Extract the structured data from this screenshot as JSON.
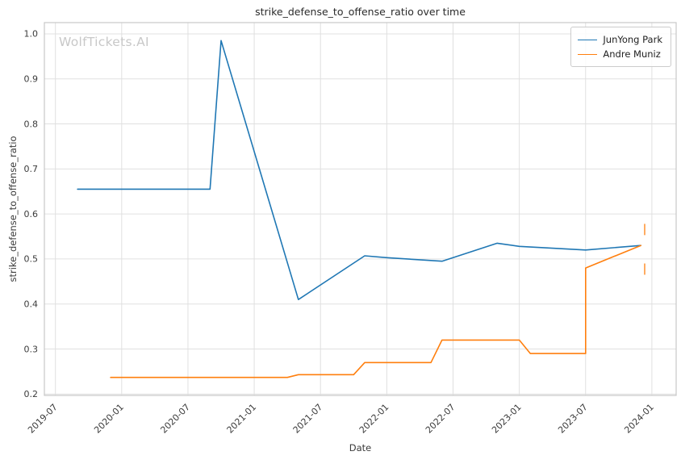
{
  "watermark": "WolfTickets.AI",
  "chart_data": {
    "type": "line",
    "title": "strike_defense_to_offense_ratio over time",
    "xlabel": "Date",
    "ylabel": "strike_defense_to_offense_ratio",
    "grid": true,
    "legend_position": "upper right",
    "ylim": [
      0.2,
      1.0
    ],
    "yticks": [
      0.2,
      0.3,
      0.4,
      0.5,
      0.6,
      0.7,
      0.8,
      0.9,
      1.0
    ],
    "xticks": [
      "2019-07",
      "2020-01",
      "2020-07",
      "2021-01",
      "2021-07",
      "2022-01",
      "2022-07",
      "2023-01",
      "2023-07",
      "2024-01"
    ],
    "series": [
      {
        "name": "JunYong Park",
        "color": "#1f77b4",
        "points": [
          [
            "2019-09",
            0.655
          ],
          [
            "2020-09",
            0.655
          ],
          [
            "2020-10",
            0.985
          ],
          [
            "2021-05",
            0.41
          ],
          [
            "2021-11",
            0.507
          ],
          [
            "2022-01",
            0.503
          ],
          [
            "2022-06",
            0.495
          ],
          [
            "2022-11",
            0.535
          ],
          [
            "2023-01",
            0.528
          ],
          [
            "2023-07",
            0.52
          ],
          [
            "2023-12",
            0.53
          ]
        ]
      },
      {
        "name": "Andre Muniz",
        "color": "#ff7f0e",
        "points": [
          [
            "2019-12",
            0.237
          ],
          [
            "2021-04",
            0.237
          ],
          [
            "2021-05",
            0.243
          ],
          [
            "2021-10",
            0.243
          ],
          [
            "2021-11",
            0.27
          ],
          [
            "2022-05",
            0.27
          ],
          [
            "2022-06",
            0.32
          ],
          [
            "2023-01",
            0.32
          ],
          [
            "2023-02",
            0.29
          ],
          [
            "2023-07",
            0.29
          ],
          [
            "2023-07",
            0.48
          ],
          [
            "2023-12",
            0.53
          ]
        ]
      }
    ],
    "extra_marks": {
      "x": "2023-12",
      "color": "#ff7f0e",
      "segments": [
        [
          0.465,
          0.49
        ],
        [
          0.553,
          0.578
        ]
      ]
    }
  }
}
